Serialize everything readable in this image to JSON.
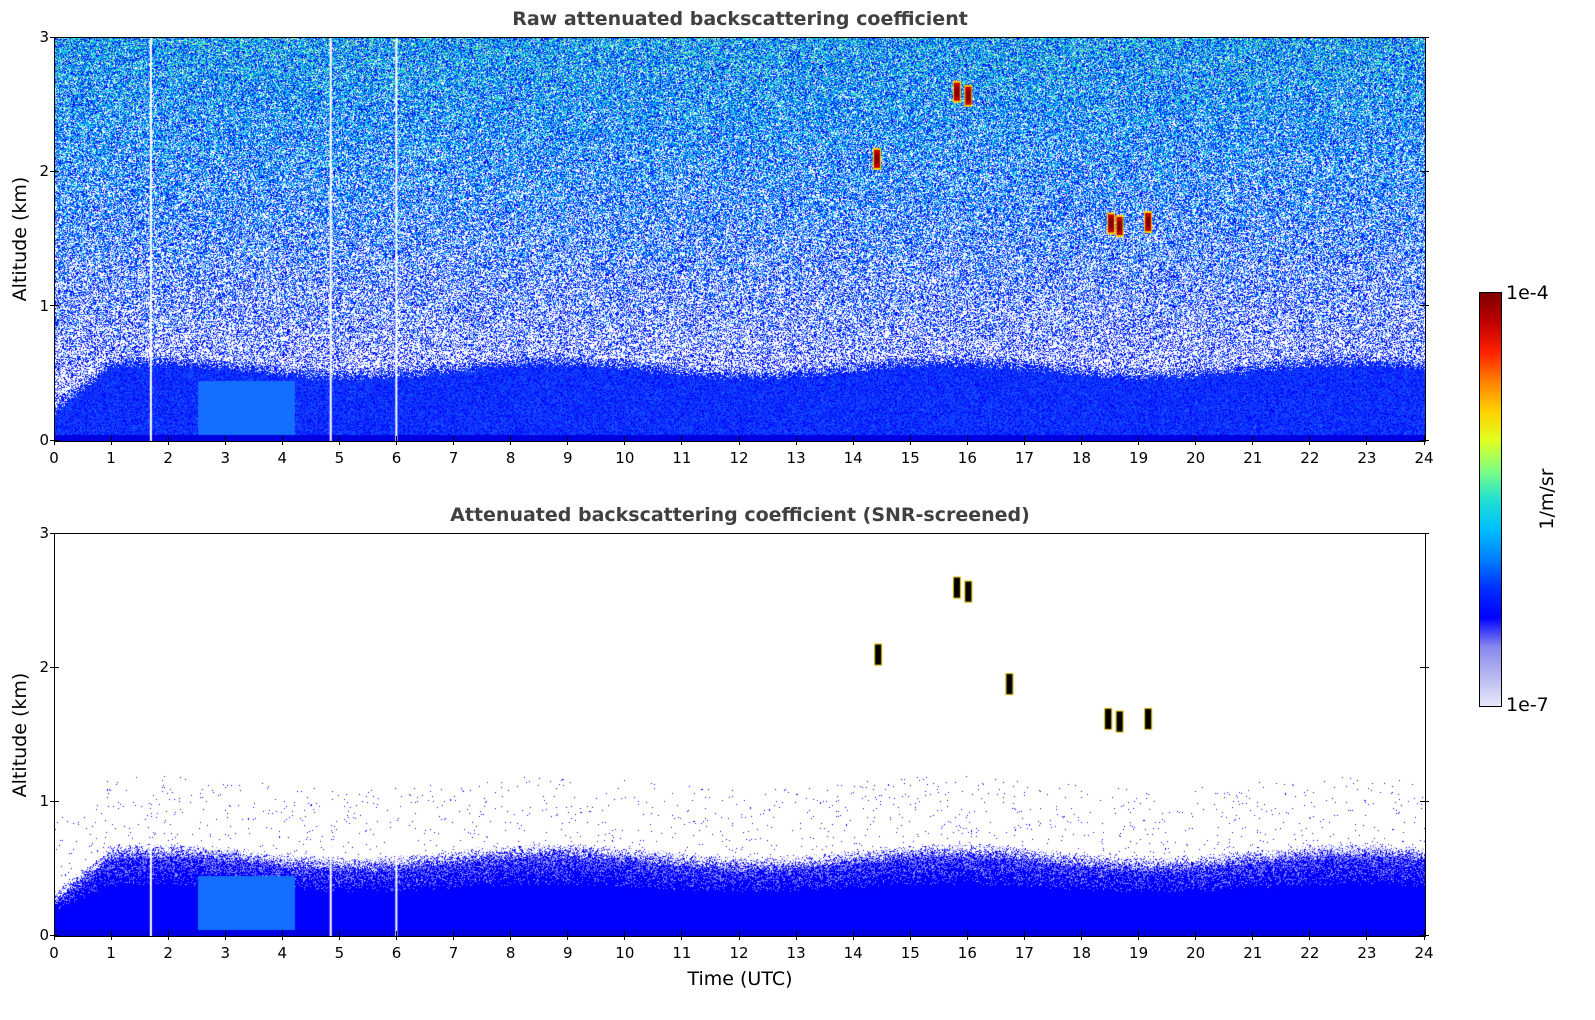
{
  "chart_data": [
    {
      "type": "heatmap",
      "title": "Raw attenuated backscattering coefficient",
      "xlabel": "",
      "ylabel": "Altitude (km)",
      "xlim": [
        0,
        24
      ],
      "ylim": [
        0,
        3
      ],
      "xticks": [
        "0",
        "1",
        "2",
        "3",
        "4",
        "5",
        "6",
        "7",
        "8",
        "9",
        "10",
        "11",
        "12",
        "13",
        "14",
        "15",
        "16",
        "17",
        "18",
        "19",
        "20",
        "21",
        "22",
        "23",
        "24"
      ],
      "yticks": [
        "0",
        "1",
        "2",
        "3"
      ],
      "features": {
        "boundary_layer_top_km": 0.6,
        "cloud_patches": [
          {
            "time": 14.4,
            "alt_km": 2.1
          },
          {
            "time": 15.8,
            "alt_km": 2.6
          },
          {
            "time": 16.0,
            "alt_km": 2.57
          },
          {
            "time": 18.5,
            "alt_km": 1.62
          },
          {
            "time": 18.65,
            "alt_km": 1.6
          },
          {
            "time": 19.15,
            "alt_km": 1.63
          }
        ],
        "white_gaps_time": [
          1.68,
          4.83,
          5.98
        ]
      }
    },
    {
      "type": "heatmap",
      "title": "Attenuated backscattering coefficient (SNR-screened)",
      "xlabel": "Time (UTC)",
      "ylabel": "Altitude (km)",
      "xlim": [
        0,
        24
      ],
      "ylim": [
        0,
        3
      ],
      "xticks": [
        "0",
        "1",
        "2",
        "3",
        "4",
        "5",
        "6",
        "7",
        "8",
        "9",
        "10",
        "11",
        "12",
        "13",
        "14",
        "15",
        "16",
        "17",
        "18",
        "19",
        "20",
        "21",
        "22",
        "23",
        "24"
      ],
      "yticks": [
        "0",
        "1",
        "2",
        "3"
      ],
      "features": {
        "boundary_layer_top_km": 0.65,
        "cloud_patches": [
          {
            "time": 14.42,
            "alt_km": 2.1
          },
          {
            "time": 15.8,
            "alt_km": 2.6
          },
          {
            "time": 16.0,
            "alt_km": 2.57
          },
          {
            "time": 16.72,
            "alt_km": 1.88
          },
          {
            "time": 18.45,
            "alt_km": 1.62
          },
          {
            "time": 18.65,
            "alt_km": 1.6
          },
          {
            "time": 19.15,
            "alt_km": 1.62
          }
        ],
        "white_gaps_time": [
          1.68,
          4.83,
          5.98
        ]
      }
    }
  ],
  "colorbar": {
    "label": "1/m/sr",
    "max_label": "1e-4",
    "min_label": "1e-7",
    "scale": "log",
    "colors": [
      "#e8e8fa",
      "#b8b8f0",
      "#8888ee",
      "#0000ff",
      "#0030ff",
      "#0080ff",
      "#00c0ff",
      "#20e0d0",
      "#80ff80",
      "#e0ff20",
      "#ffd000",
      "#ff8000",
      "#ff2000",
      "#c00000",
      "#800000"
    ]
  }
}
